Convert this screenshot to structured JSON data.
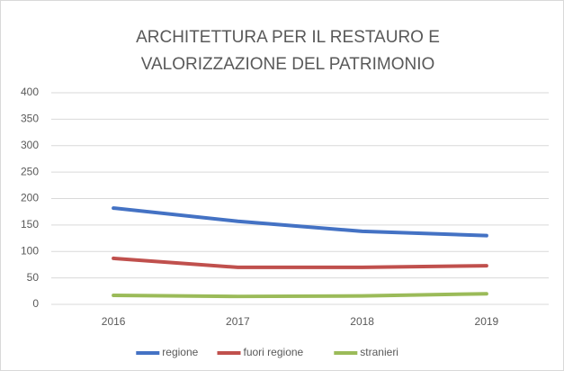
{
  "chart_data": {
    "type": "line",
    "title": [
      "ARCHITETTURA PER IL RESTAURO E",
      "VALORIZZAZIONE DEL PATRIMONIO"
    ],
    "categories": [
      "2016",
      "2017",
      "2018",
      "2019"
    ],
    "series": [
      {
        "name": "regione",
        "color": "#4472c4",
        "values": [
          182,
          157,
          138,
          130
        ]
      },
      {
        "name": "fuori regione",
        "color": "#c0504d",
        "values": [
          87,
          70,
          70,
          73
        ]
      },
      {
        "name": "stranieri",
        "color": "#9bbb59",
        "values": [
          17,
          15,
          16,
          20
        ]
      }
    ],
    "ylim": [
      0,
      400
    ],
    "yticks": [
      0,
      50,
      100,
      150,
      200,
      250,
      300,
      350,
      400
    ],
    "grid": true,
    "legend": "bottom"
  }
}
